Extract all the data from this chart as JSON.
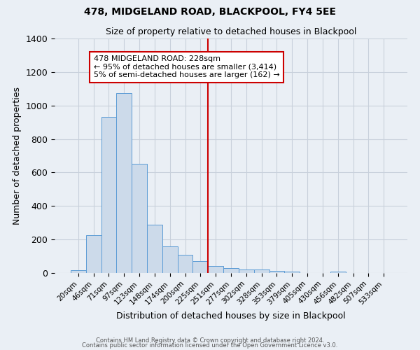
{
  "title": "478, MIDGELAND ROAD, BLACKPOOL, FY4 5EE",
  "subtitle": "Size of property relative to detached houses in Blackpool",
  "xlabel": "Distribution of detached houses by size in Blackpool",
  "ylabel": "Number of detached properties",
  "bar_labels": [
    "20sqm",
    "46sqm",
    "71sqm",
    "97sqm",
    "123sqm",
    "148sqm",
    "174sqm",
    "200sqm",
    "225sqm",
    "251sqm",
    "277sqm",
    "302sqm",
    "328sqm",
    "353sqm",
    "379sqm",
    "405sqm",
    "430sqm",
    "456sqm",
    "482sqm",
    "507sqm",
    "533sqm"
  ],
  "bar_values": [
    15,
    225,
    930,
    1075,
    650,
    290,
    160,
    108,
    72,
    40,
    30,
    22,
    20,
    12,
    8,
    0,
    0,
    8,
    0,
    0,
    0
  ],
  "bar_color": "#ccdaea",
  "bar_edgecolor": "#5b9bd5",
  "grid_color": "#c8d0db",
  "background_color": "#eaeff5",
  "property_line_x": 8.5,
  "property_line_color": "#cc0000",
  "annotation_text": "478 MIDGELAND ROAD: 228sqm\n← 95% of detached houses are smaller (3,414)\n5% of semi-detached houses are larger (162) →",
  "annotation_box_facecolor": "#ffffff",
  "annotation_box_edgecolor": "#cc0000",
  "ylim": [
    0,
    1400
  ],
  "yticks": [
    0,
    200,
    400,
    600,
    800,
    1000,
    1200,
    1400
  ],
  "footer1": "Contains HM Land Registry data © Crown copyright and database right 2024.",
  "footer2": "Contains public sector information licensed under the Open Government Licence v3.0."
}
